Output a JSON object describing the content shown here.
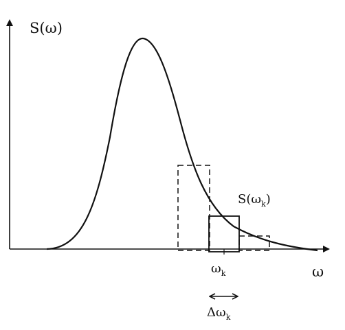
{
  "diagram": {
    "y_axis_label": {
      "main": "S(ω)"
    },
    "x_axis_label": {
      "main": "ω"
    },
    "bin_label": {
      "main": "S(ω",
      "sub": "k",
      "close": ")"
    },
    "tick_label": {
      "main": "ω",
      "sub": "k"
    },
    "bandwidth_label": {
      "main": "Δω",
      "sub": "k"
    },
    "colors": {
      "ink": "#111111",
      "background": "#ffffff"
    },
    "curve_shape": "asymmetric single-peak spectrum with long tail",
    "bins": [
      {
        "role": "previous bin",
        "style": "dashed"
      },
      {
        "role": "current bin k",
        "style": "solid"
      },
      {
        "role": "next bin",
        "style": "dashed"
      }
    ]
  }
}
